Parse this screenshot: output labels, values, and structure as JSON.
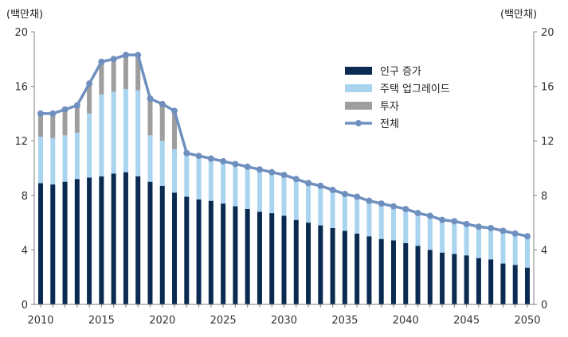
{
  "chart_data": {
    "type": "bar",
    "stacked": true,
    "x": [
      2010,
      2011,
      2012,
      2013,
      2014,
      2015,
      2016,
      2017,
      2018,
      2019,
      2020,
      2021,
      2022,
      2023,
      2024,
      2025,
      2026,
      2027,
      2028,
      2029,
      2030,
      2031,
      2032,
      2033,
      2034,
      2035,
      2036,
      2037,
      2038,
      2039,
      2040,
      2041,
      2042,
      2043,
      2044,
      2045,
      2046,
      2047,
      2048,
      2049,
      2050
    ],
    "xticks": [
      "2010",
      "2015",
      "2020",
      "2025",
      "2030",
      "2035",
      "2040",
      "2045",
      "2050"
    ],
    "ylim": [
      0,
      20
    ],
    "yticks_left": [
      "0",
      "4",
      "8",
      "12",
      "16",
      "20"
    ],
    "yticks_right": [
      "0",
      "4",
      "8",
      "12",
      "16",
      "20"
    ],
    "ylabel_left": "(백만채)",
    "ylabel_right": "(백만채)",
    "legend_position": "top-right",
    "grid": false,
    "series": [
      {
        "name": "인구 증가",
        "kind": "bar",
        "color": "#0a2a52",
        "values": [
          8.9,
          8.8,
          9.0,
          9.2,
          9.3,
          9.4,
          9.6,
          9.7,
          9.4,
          9.0,
          8.7,
          8.2,
          7.9,
          7.7,
          7.6,
          7.4,
          7.2,
          7.0,
          6.8,
          6.7,
          6.5,
          6.2,
          6.0,
          5.8,
          5.6,
          5.4,
          5.2,
          5.0,
          4.8,
          4.7,
          4.5,
          4.3,
          4.0,
          3.8,
          3.7,
          3.6,
          3.4,
          3.3,
          3.0,
          2.9,
          2.7
        ]
      },
      {
        "name": "주택 업그레이드",
        "kind": "bar",
        "color": "#a9d4f0",
        "values": [
          3.4,
          3.4,
          3.4,
          3.4,
          4.7,
          6.0,
          6.0,
          6.1,
          6.3,
          3.4,
          3.3,
          3.2,
          3.2,
          3.2,
          3.1,
          3.1,
          3.1,
          3.1,
          3.1,
          3.0,
          3.0,
          3.0,
          2.9,
          2.9,
          2.8,
          2.7,
          2.7,
          2.6,
          2.6,
          2.5,
          2.5,
          2.4,
          2.5,
          2.4,
          2.4,
          2.3,
          2.3,
          2.3,
          2.4,
          2.3,
          2.3
        ]
      },
      {
        "name": "투자",
        "kind": "bar",
        "color": "#9e9e9e",
        "values": [
          1.7,
          1.8,
          1.9,
          2.0,
          2.2,
          2.4,
          2.4,
          2.5,
          2.6,
          2.7,
          2.7,
          2.8,
          0,
          0,
          0,
          0,
          0,
          0,
          0,
          0,
          0,
          0,
          0,
          0,
          0,
          0,
          0,
          0,
          0,
          0,
          0,
          0,
          0,
          0,
          0,
          0,
          0,
          0,
          0,
          0,
          0
        ]
      },
      {
        "name": "전체",
        "kind": "line",
        "color": "#6f90bf",
        "values": [
          14.0,
          14.0,
          14.3,
          14.6,
          16.2,
          17.8,
          18.0,
          18.3,
          18.3,
          15.1,
          14.7,
          14.2,
          11.1,
          10.9,
          10.7,
          10.5,
          10.3,
          10.1,
          9.9,
          9.7,
          9.5,
          9.2,
          8.9,
          8.7,
          8.4,
          8.1,
          7.9,
          7.6,
          7.4,
          7.2,
          7.0,
          6.7,
          6.5,
          6.2,
          6.1,
          5.9,
          5.7,
          5.6,
          5.4,
          5.2,
          5.0
        ]
      }
    ]
  },
  "colors": {
    "axis": "#808080",
    "text": "#333333"
  }
}
